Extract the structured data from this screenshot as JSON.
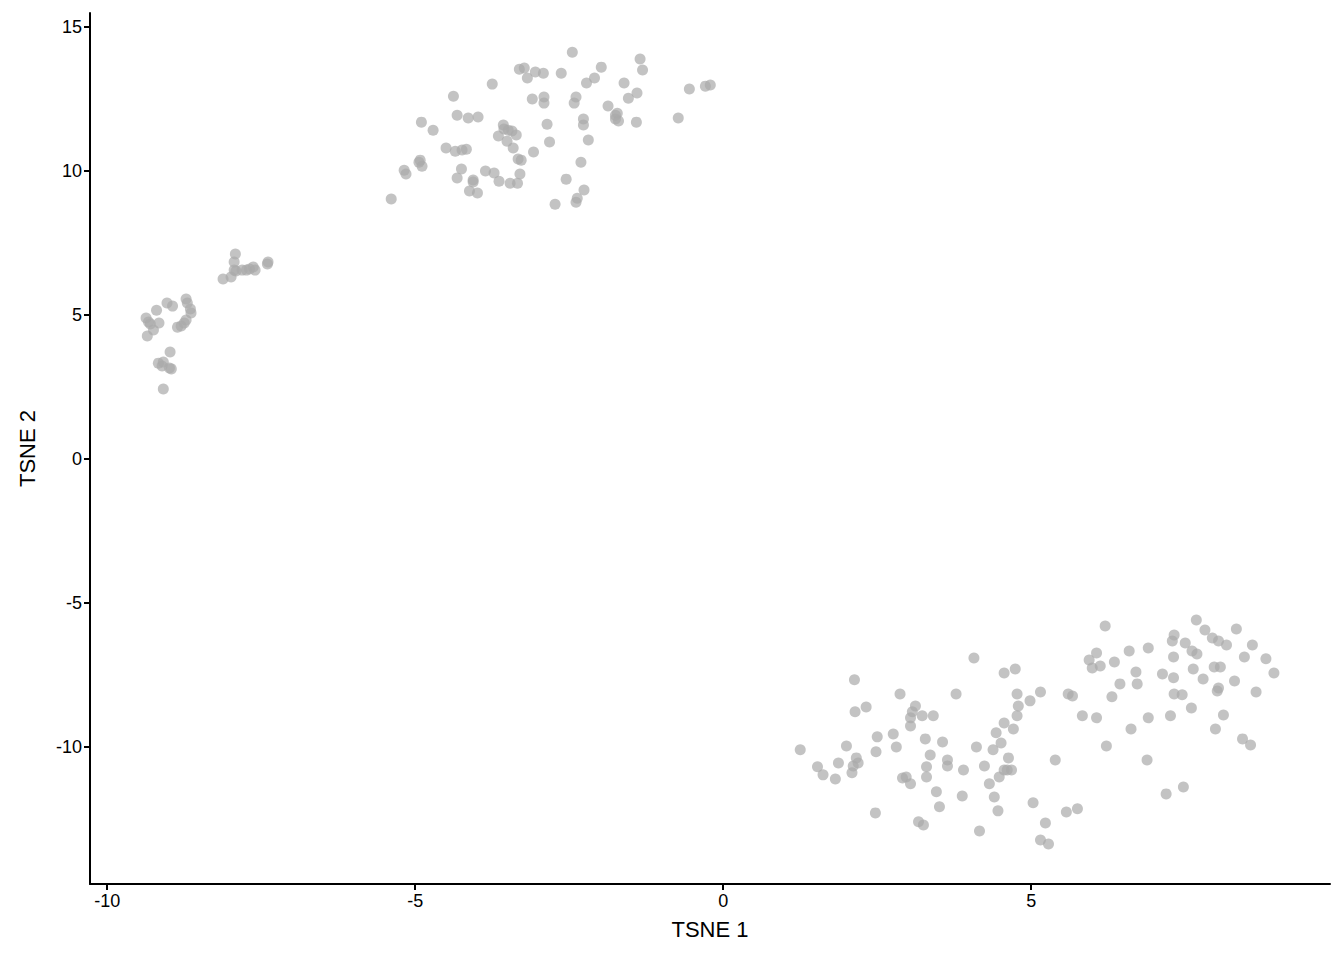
{
  "chart_data": {
    "type": "scatter",
    "x_label": "TSNE 1",
    "y_label": "TSNE 2",
    "color": "#a9a9a9",
    "marker": "circle",
    "grid": false,
    "xlim": [
      -10.28,
      9.85
    ],
    "ylim": [
      -14.76,
      15.49
    ],
    "xticks": [
      -10,
      -5,
      0,
      5
    ],
    "yticks": [
      -10,
      -5,
      0,
      5,
      10,
      15
    ],
    "x": [
      -9.37,
      -9.33,
      -9.3,
      -9.35,
      -9.25,
      -9.2,
      -9.16,
      -9.03,
      -8.94,
      -8.72,
      -8.7,
      -8.65,
      -8.64,
      -8.86,
      -8.8,
      -8.75,
      -8.72,
      -8.98,
      -9.17,
      -9.11,
      -9.09,
      -8.99,
      -8.96,
      -9.09,
      -8.12,
      -7.99,
      -7.94,
      -7.92,
      -7.91,
      -7.81,
      -7.74,
      -7.69,
      -7.63,
      -7.6,
      -7.4,
      -7.39,
      -7.94,
      -5.39,
      -5.18,
      -5.15,
      -4.94,
      -4.9,
      -4.89,
      -4.92,
      -4.71,
      -4.5,
      -4.38,
      -4.32,
      -4.35,
      -4.32,
      -4.25,
      -4.24,
      -4.17,
      -4.14,
      -4.12,
      -4.06,
      -4.06,
      -3.99,
      -3.98,
      -3.86,
      -3.75,
      -3.72,
      -3.65,
      -3.64,
      -3.57,
      -3.56,
      -3.51,
      -3.49,
      -3.46,
      -3.43,
      -3.41,
      -3.36,
      -3.34,
      -3.33,
      -3.31,
      -3.3,
      -3.28,
      -3.23,
      -3.18,
      -3.1,
      -3.08,
      -3.05,
      -2.92,
      -2.91,
      -2.91,
      -2.86,
      -2.82,
      -2.73,
      -2.63,
      -2.55,
      -2.45,
      -2.42,
      -2.39,
      -2.39,
      -2.37,
      -2.31,
      -2.27,
      -2.27,
      -2.26,
      -2.22,
      -2.19,
      -2.09,
      -1.98,
      -1.87,
      -1.75,
      -1.75,
      -1.72,
      -1.7,
      -1.61,
      -1.54,
      -1.41,
      -1.4,
      -1.35,
      -1.31,
      -0.73,
      -0.55,
      -0.29,
      -0.21,
      1.25,
      1.53,
      1.62,
      1.82,
      1.87,
      2.0,
      2.09,
      2.11,
      2.16,
      2.19,
      2.13,
      2.14,
      2.32,
      2.47,
      2.5,
      2.48,
      2.76,
      2.81,
      2.87,
      2.91,
      2.97,
      3.04,
      3.04,
      3.04,
      3.07,
      3.12,
      3.23,
      3.17,
      3.25,
      3.28,
      3.3,
      3.3,
      3.36,
      3.41,
      3.46,
      3.51,
      3.56,
      3.64,
      3.64,
      3.78,
      3.9,
      3.88,
      4.07,
      4.11,
      4.16,
      4.24,
      4.32,
      4.38,
      4.4,
      4.43,
      4.46,
      4.48,
      4.51,
      4.56,
      4.56,
      4.56,
      4.61,
      4.63,
      4.68,
      4.71,
      4.74,
      4.77,
      4.77,
      4.79,
      4.98,
      5.03,
      5.15,
      5.15,
      5.23,
      5.28,
      5.39,
      5.57,
      5.6,
      5.67,
      5.75,
      5.83,
      5.94,
      5.99,
      6.06,
      6.06,
      6.12,
      6.2,
      6.22,
      6.31,
      6.35,
      6.44,
      6.59,
      6.62,
      6.7,
      6.72,
      6.88,
      6.9,
      6.9,
      7.13,
      7.19,
      7.26,
      7.29,
      7.31,
      7.31,
      7.32,
      7.32,
      7.45,
      7.47,
      7.5,
      7.6,
      7.61,
      7.63,
      7.68,
      7.69,
      7.79,
      7.82,
      7.94,
      7.97,
      7.99,
      8.02,
      8.04,
      8.04,
      8.07,
      8.12,
      8.17,
      8.3,
      8.33,
      8.43,
      8.46,
      8.56,
      8.59,
      8.65,
      8.81,
      8.94
    ],
    "values": [
      4.9,
      4.76,
      4.69,
      4.27,
      4.48,
      5.17,
      4.72,
      5.42,
      5.31,
      5.56,
      5.42,
      5.21,
      5.07,
      4.58,
      4.62,
      4.72,
      4.83,
      3.72,
      3.33,
      3.23,
      3.37,
      3.16,
      3.13,
      2.43,
      6.25,
      6.32,
      6.56,
      7.12,
      6.53,
      6.56,
      6.56,
      6.6,
      6.67,
      6.56,
      6.77,
      6.84,
      6.84,
      9.03,
      10.03,
      9.9,
      10.31,
      11.7,
      10.17,
      10.38,
      11.42,
      10.8,
      12.6,
      11.94,
      10.69,
      9.76,
      10.07,
      10.73,
      10.76,
      11.84,
      9.31,
      9.69,
      9.62,
      9.24,
      11.88,
      10.0,
      13.02,
      9.93,
      11.22,
      9.65,
      11.6,
      11.46,
      11.04,
      11.42,
      9.58,
      11.39,
      10.8,
      11.25,
      9.58,
      10.42,
      13.54,
      9.9,
      10.38,
      13.58,
      13.23,
      12.5,
      10.66,
      13.44,
      13.4,
      12.57,
      12.36,
      11.63,
      11.01,
      8.85,
      13.4,
      9.72,
      14.13,
      12.36,
      12.57,
      8.92,
      9.06,
      10.31,
      11.81,
      11.6,
      9.34,
      13.06,
      11.08,
      13.23,
      13.61,
      12.26,
      11.81,
      11.94,
      12.01,
      11.74,
      13.06,
      12.53,
      11.7,
      12.71,
      13.89,
      13.51,
      11.84,
      12.85,
      12.95,
      12.99,
      -10.1,
      -10.69,
      -10.97,
      -11.11,
      -10.56,
      -9.97,
      -10.9,
      -10.66,
      -10.38,
      -10.56,
      -7.67,
      -8.78,
      -8.61,
      -12.29,
      -9.65,
      -10.17,
      -9.55,
      -10.0,
      -8.16,
      -11.08,
      -11.04,
      -11.28,
      -9.27,
      -8.99,
      -8.78,
      -8.58,
      -8.92,
      -12.6,
      -12.71,
      -9.72,
      -10.69,
      -11.04,
      -10.28,
      -8.92,
      -11.56,
      -12.08,
      -9.83,
      -10.45,
      -10.66,
      -8.16,
      -10.8,
      -11.7,
      -6.91,
      -10.0,
      -12.92,
      -10.66,
      -11.28,
      -10.1,
      -11.74,
      -9.51,
      -12.22,
      -11.04,
      -9.86,
      -7.43,
      -10.8,
      -9.17,
      -10.8,
      -10.38,
      -10.8,
      -9.38,
      -7.29,
      -8.16,
      -8.92,
      -8.58,
      -8.4,
      -11.94,
      -8.09,
      -13.23,
      -12.64,
      -13.37,
      -10.45,
      -12.26,
      -8.16,
      -8.23,
      -12.15,
      -8.92,
      -6.98,
      -7.26,
      -8.99,
      -6.74,
      -7.19,
      -5.8,
      -9.97,
      -8.26,
      -7.05,
      -7.81,
      -6.67,
      -9.38,
      -7.4,
      -7.81,
      -10.45,
      -6.56,
      -8.99,
      -7.47,
      -11.63,
      -8.92,
      -6.32,
      -7.6,
      -6.88,
      -8.16,
      -6.11,
      -8.19,
      -11.39,
      -6.39,
      -8.65,
      -6.67,
      -7.29,
      -5.59,
      -6.77,
      -7.64,
      -5.94,
      -6.22,
      -7.22,
      -9.38,
      -8.06,
      -6.32,
      -7.95,
      -7.22,
      -8.89,
      -6.46,
      -7.71,
      -5.9,
      -9.72,
      -6.88,
      -9.93,
      -6.46,
      -8.09,
      -6.94,
      -7.43
    ]
  }
}
